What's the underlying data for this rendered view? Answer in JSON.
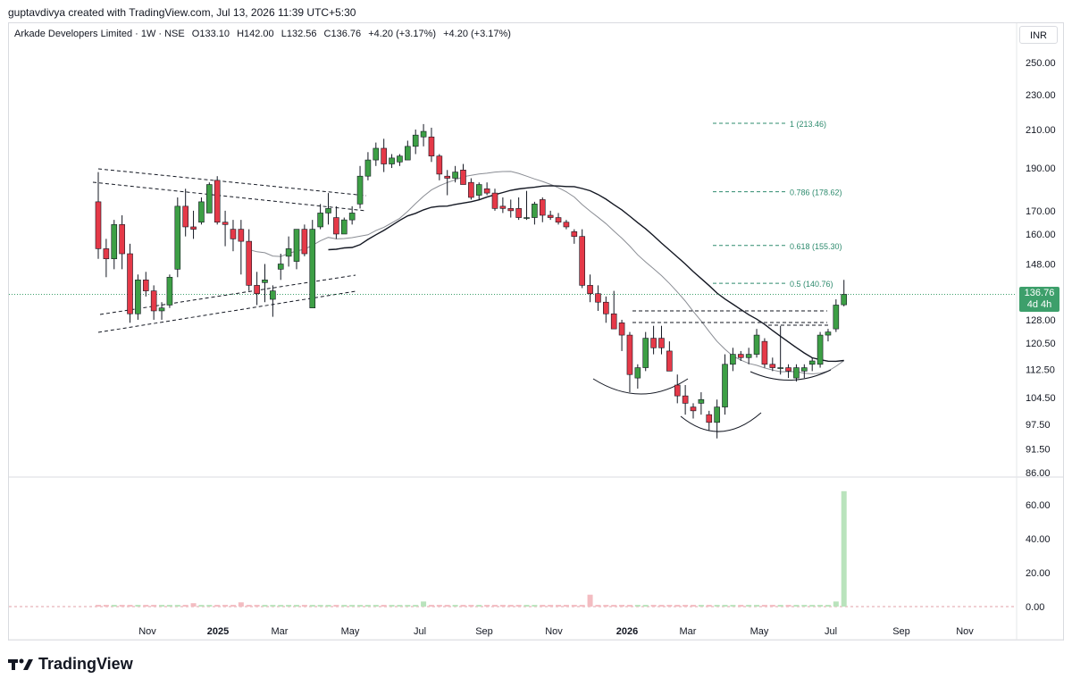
{
  "header": {
    "attribution": "guptavdivya created with TradingView.com, Jul 13, 2026 11:39 UTC+5:30"
  },
  "legend": {
    "symbol": "Arkade Developers Limited · 1W · NSE",
    "open": "O133.10",
    "high": "H142.00",
    "low": "L132.56",
    "close": "C136.76",
    "change": "+4.20 (+3.17%)",
    "change2": "+4.20 (+3.17%)"
  },
  "currency_button": "INR",
  "last_price": {
    "value": "136.76",
    "countdown": "4d 4h"
  },
  "brand": {
    "name": "TradingView"
  },
  "colors": {
    "up": "#3d9f45",
    "down": "#e53948",
    "fib": "#2e8b6e",
    "price_line": "#3d9f6b",
    "vol_up": "#b9e3bc",
    "vol_down": "#f3bcc1"
  },
  "chart_data": {
    "type": "candlestick",
    "interval": "1W",
    "x_ticks": [
      "Nov",
      "2025",
      "Mar",
      "May",
      "Jul",
      "Sep",
      "Nov",
      "2026",
      "Mar",
      "May",
      "Jul",
      "Sep",
      "Nov"
    ],
    "price_axis_ticks": [
      "250.00",
      "230.00",
      "210.00",
      "190.00",
      "170.00",
      "160.00",
      "148.00",
      "128.00",
      "120.50",
      "112.50",
      "104.50",
      "97.50",
      "91.50",
      "86.00"
    ],
    "volume_axis_ticks": [
      "60.00",
      "40.00",
      "20.00",
      "0.00"
    ],
    "price_scale": "log",
    "candles": [
      {
        "o": 174,
        "h": 188,
        "l": 150,
        "c": 154
      },
      {
        "o": 154,
        "h": 158,
        "l": 143,
        "c": 150
      },
      {
        "o": 150,
        "h": 166,
        "l": 146,
        "c": 164
      },
      {
        "o": 164,
        "h": 168,
        "l": 146,
        "c": 152
      },
      {
        "o": 152,
        "h": 156,
        "l": 127,
        "c": 130
      },
      {
        "o": 130,
        "h": 144,
        "l": 128,
        "c": 142
      },
      {
        "o": 142,
        "h": 145,
        "l": 136,
        "c": 138
      },
      {
        "o": 138,
        "h": 140,
        "l": 128,
        "c": 131
      },
      {
        "o": 131,
        "h": 134,
        "l": 128,
        "c": 132
      },
      {
        "o": 133,
        "h": 144,
        "l": 132,
        "c": 143
      },
      {
        "o": 146,
        "h": 176,
        "l": 143,
        "c": 172
      },
      {
        "o": 172,
        "h": 180,
        "l": 159,
        "c": 163
      },
      {
        "o": 163,
        "h": 170,
        "l": 158,
        "c": 162
      },
      {
        "o": 165,
        "h": 176,
        "l": 164,
        "c": 174
      },
      {
        "o": 169,
        "h": 183,
        "l": 169,
        "c": 182
      },
      {
        "o": 184,
        "h": 186,
        "l": 164,
        "c": 165
      },
      {
        "o": 165,
        "h": 170,
        "l": 155,
        "c": 164
      },
      {
        "o": 162,
        "h": 166,
        "l": 153,
        "c": 158
      },
      {
        "o": 162,
        "h": 166,
        "l": 144,
        "c": 157
      },
      {
        "o": 157,
        "h": 162,
        "l": 138,
        "c": 140
      },
      {
        "o": 140,
        "h": 145,
        "l": 133,
        "c": 137
      },
      {
        "o": 141,
        "h": 148,
        "l": 134,
        "c": 142
      },
      {
        "o": 135,
        "h": 140,
        "l": 129,
        "c": 138
      },
      {
        "o": 146,
        "h": 152,
        "l": 142,
        "c": 148
      },
      {
        "o": 151,
        "h": 159,
        "l": 147,
        "c": 154
      },
      {
        "o": 149,
        "h": 162,
        "l": 146,
        "c": 162
      },
      {
        "o": 162,
        "h": 164,
        "l": 151,
        "c": 152
      },
      {
        "o": 132,
        "h": 166,
        "l": 132,
        "c": 162
      },
      {
        "o": 163,
        "h": 173,
        "l": 162,
        "c": 169
      },
      {
        "o": 169,
        "h": 178,
        "l": 164,
        "c": 171
      },
      {
        "o": 167,
        "h": 172,
        "l": 158,
        "c": 160
      },
      {
        "o": 160,
        "h": 167,
        "l": 160,
        "c": 166
      },
      {
        "o": 166,
        "h": 172,
        "l": 164,
        "c": 169
      },
      {
        "o": 173,
        "h": 191,
        "l": 171,
        "c": 186
      },
      {
        "o": 186,
        "h": 198,
        "l": 184,
        "c": 194
      },
      {
        "o": 194,
        "h": 203,
        "l": 191,
        "c": 200
      },
      {
        "o": 200,
        "h": 205,
        "l": 188,
        "c": 192
      },
      {
        "o": 192,
        "h": 197,
        "l": 190,
        "c": 195
      },
      {
        "o": 193,
        "h": 197,
        "l": 191,
        "c": 196
      },
      {
        "o": 194,
        "h": 204,
        "l": 194,
        "c": 201
      },
      {
        "o": 201,
        "h": 210,
        "l": 197,
        "c": 207
      },
      {
        "o": 206,
        "h": 213,
        "l": 201,
        "c": 209
      },
      {
        "o": 206,
        "h": 211,
        "l": 193,
        "c": 196
      },
      {
        "o": 196,
        "h": 197,
        "l": 184,
        "c": 187
      },
      {
        "o": 186,
        "h": 189,
        "l": 177,
        "c": 185
      },
      {
        "o": 185,
        "h": 191,
        "l": 183,
        "c": 188
      },
      {
        "o": 189,
        "h": 192,
        "l": 182,
        "c": 182
      },
      {
        "o": 183,
        "h": 185,
        "l": 175,
        "c": 176
      },
      {
        "o": 177,
        "h": 183,
        "l": 175,
        "c": 182
      },
      {
        "o": 180,
        "h": 183,
        "l": 177,
        "c": 178
      },
      {
        "o": 178,
        "h": 180,
        "l": 170,
        "c": 171
      },
      {
        "o": 172,
        "h": 176,
        "l": 169,
        "c": 171
      },
      {
        "o": 171,
        "h": 175,
        "l": 167,
        "c": 170
      },
      {
        "o": 171,
        "h": 176,
        "l": 166,
        "c": 167
      },
      {
        "o": 167,
        "h": 179,
        "l": 166,
        "c": 167
      },
      {
        "o": 167,
        "h": 174,
        "l": 164,
        "c": 173
      },
      {
        "o": 175,
        "h": 176,
        "l": 165,
        "c": 168
      },
      {
        "o": 168,
        "h": 170,
        "l": 166,
        "c": 167
      },
      {
        "o": 167,
        "h": 169,
        "l": 164,
        "c": 165
      },
      {
        "o": 165,
        "h": 166,
        "l": 162,
        "c": 163
      },
      {
        "o": 161,
        "h": 162,
        "l": 156,
        "c": 159
      },
      {
        "o": 159,
        "h": 162,
        "l": 139,
        "c": 140
      },
      {
        "o": 140,
        "h": 144,
        "l": 134,
        "c": 137
      },
      {
        "o": 137,
        "h": 140,
        "l": 131,
        "c": 134
      },
      {
        "o": 134,
        "h": 136,
        "l": 127,
        "c": 130
      },
      {
        "o": 130,
        "h": 138,
        "l": 126,
        "c": 125
      },
      {
        "o": 127,
        "h": 128,
        "l": 118,
        "c": 123
      },
      {
        "o": 123,
        "h": 124,
        "l": 106,
        "c": 111
      },
      {
        "o": 110,
        "h": 114,
        "l": 107,
        "c": 113
      },
      {
        "o": 113,
        "h": 124,
        "l": 112,
        "c": 122
      },
      {
        "o": 122,
        "h": 126,
        "l": 117,
        "c": 119
      },
      {
        "o": 122,
        "h": 126,
        "l": 117,
        "c": 119
      },
      {
        "o": 118,
        "h": 121,
        "l": 112,
        "c": 112
      },
      {
        "o": 108,
        "h": 111,
        "l": 103,
        "c": 105
      },
      {
        "o": 105,
        "h": 108,
        "l": 100,
        "c": 103
      },
      {
        "o": 102,
        "h": 103,
        "l": 99,
        "c": 101
      },
      {
        "o": 103,
        "h": 106,
        "l": 100,
        "c": 104
      },
      {
        "o": 100,
        "h": 101,
        "l": 96,
        "c": 98
      },
      {
        "o": 98,
        "h": 104,
        "l": 94,
        "c": 102
      },
      {
        "o": 102,
        "h": 117,
        "l": 100,
        "c": 114
      },
      {
        "o": 114,
        "h": 119,
        "l": 112,
        "c": 117
      },
      {
        "o": 117,
        "h": 118,
        "l": 115,
        "c": 116
      },
      {
        "o": 116,
        "h": 119,
        "l": 114,
        "c": 117
      },
      {
        "o": 117,
        "h": 125,
        "l": 116,
        "c": 123
      },
      {
        "o": 121,
        "h": 122,
        "l": 113,
        "c": 114
      },
      {
        "o": 114,
        "h": 116,
        "l": 112,
        "c": 113
      },
      {
        "o": 113,
        "h": 126,
        "l": 111,
        "c": 113
      },
      {
        "o": 113,
        "h": 114,
        "l": 110,
        "c": 112
      },
      {
        "o": 110,
        "h": 114,
        "l": 109,
        "c": 113
      },
      {
        "o": 112,
        "h": 114,
        "l": 110,
        "c": 113
      },
      {
        "o": 114,
        "h": 116,
        "l": 112,
        "c": 115
      },
      {
        "o": 114,
        "h": 124,
        "l": 113,
        "c": 123
      },
      {
        "o": 123,
        "h": 125,
        "l": 121,
        "c": 124
      },
      {
        "o": 125,
        "h": 135,
        "l": 124,
        "c": 133
      },
      {
        "o": 133.1,
        "h": 142.0,
        "l": 132.56,
        "c": 136.76
      }
    ],
    "volume": [
      1,
      1,
      1,
      1,
      1,
      1,
      1,
      1,
      1,
      1,
      1,
      1,
      1,
      1,
      1,
      1,
      1,
      1,
      1,
      1,
      1,
      1,
      1,
      1,
      1,
      1,
      1,
      1,
      1,
      1,
      1,
      1,
      1,
      1,
      1,
      1,
      1,
      1,
      1,
      1,
      1,
      1,
      1,
      1,
      1,
      1,
      1,
      1,
      1,
      1,
      1,
      1,
      1,
      1,
      1,
      1,
      1,
      1,
      1,
      1,
      1,
      1,
      1,
      1,
      1,
      1,
      1,
      1,
      1,
      1,
      1,
      1,
      1,
      1,
      1,
      1,
      1,
      1,
      1,
      1,
      1,
      1,
      1,
      1,
      1,
      1,
      1,
      1,
      1,
      1,
      1,
      1,
      1,
      3,
      68
    ],
    "volume_spikes": [
      {
        "index": 12,
        "value": 2
      },
      {
        "index": 18,
        "value": 2.5
      },
      {
        "index": 41,
        "value": 3
      },
      {
        "index": 62,
        "value": 7
      }
    ],
    "moving_averages": [
      {
        "period_label": "",
        "color": "#131722",
        "values": "computed"
      },
      {
        "period_label": "",
        "color": "#8a8d94",
        "values": "computed"
      }
    ],
    "fibonacci_levels": [
      {
        "label": "1 (213.46)",
        "price": 213.46
      },
      {
        "label": "0.786 (178.62)",
        "price": 178.62
      },
      {
        "label": "0.618 (155.30)",
        "price": 155.3
      },
      {
        "label": "0.5 (140.76)",
        "price": 140.76
      }
    ],
    "horizontal_levels": [
      131.5,
      127.5,
      126.0
    ],
    "last_price": 136.76
  }
}
